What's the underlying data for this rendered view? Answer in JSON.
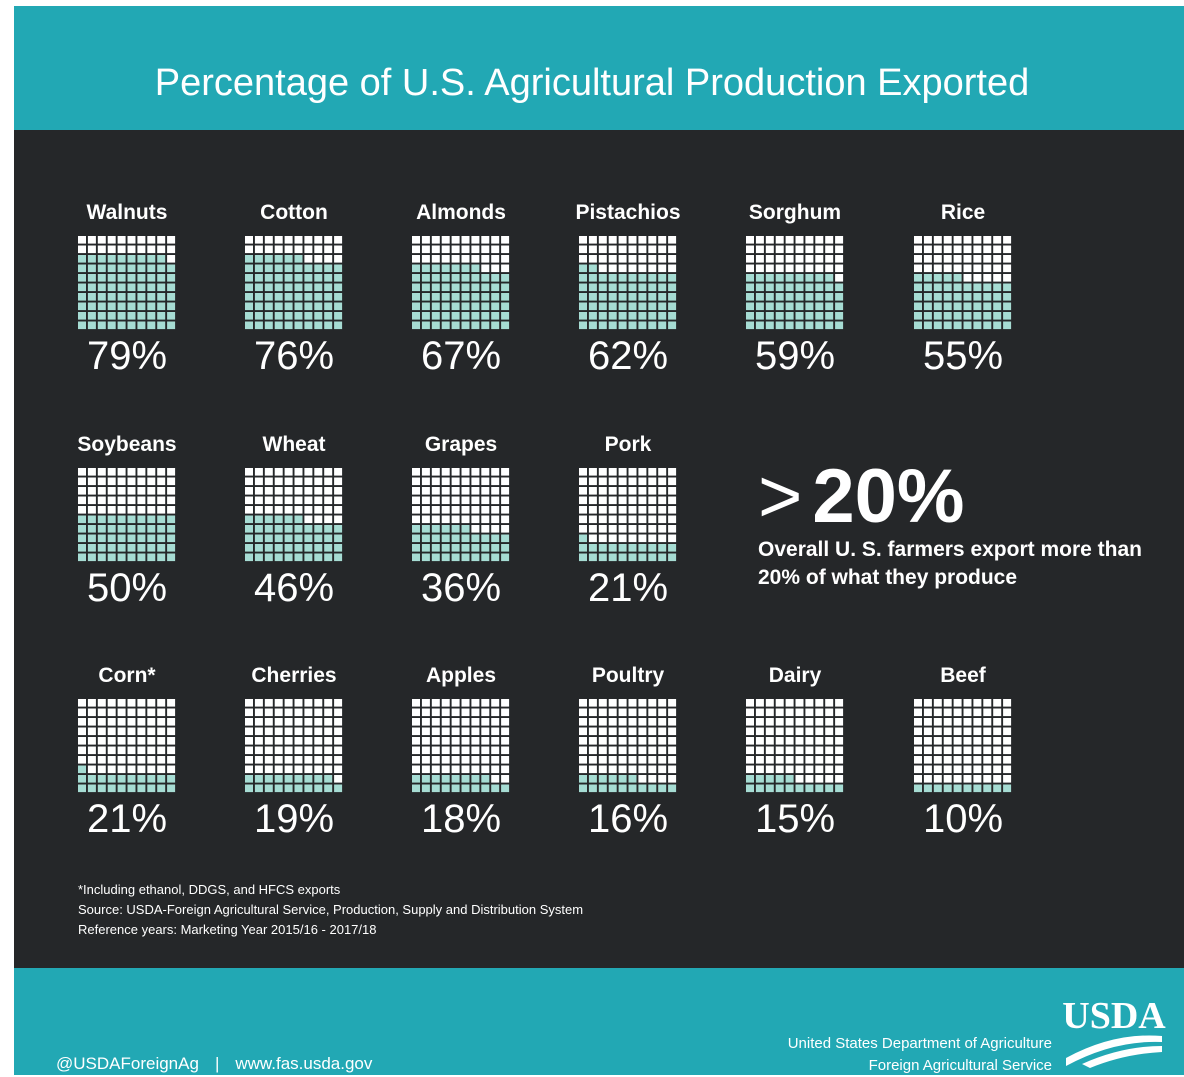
{
  "title": "Percentage of U.S. Agricultural Production Exported",
  "colors": {
    "teal": "#22a8b4",
    "dark": "#252729",
    "fill": "#a6dcd3",
    "empty": "#ffffff"
  },
  "chart_data": {
    "type": "table",
    "unit": "%",
    "items": [
      {
        "label": "Walnuts",
        "value": 79,
        "display": "79%"
      },
      {
        "label": "Cotton",
        "value": 76,
        "display": "76%"
      },
      {
        "label": "Almonds",
        "value": 67,
        "display": "67%"
      },
      {
        "label": "Pistachios",
        "value": 62,
        "display": "62%"
      },
      {
        "label": "Sorghum",
        "value": 59,
        "display": "59%"
      },
      {
        "label": "Rice",
        "value": 55,
        "display": "55%"
      },
      {
        "label": "Soybeans",
        "value": 50,
        "display": "50%"
      },
      {
        "label": "Wheat",
        "value": 46,
        "display": "46%"
      },
      {
        "label": "Grapes",
        "value": 36,
        "display": "36%"
      },
      {
        "label": "Pork",
        "value": 21,
        "display": "21%"
      },
      {
        "label": "Corn*",
        "value": 21,
        "display": "21%"
      },
      {
        "label": "Cherries",
        "value": 19,
        "display": "19%"
      },
      {
        "label": "Apples",
        "value": 18,
        "display": "18%"
      },
      {
        "label": "Poultry",
        "value": 16,
        "display": "16%"
      },
      {
        "label": "Dairy",
        "value": 15,
        "display": "15%"
      },
      {
        "label": "Beef",
        "value": 10,
        "display": "10%"
      }
    ]
  },
  "callout": {
    "symbol": ">",
    "value": "20%",
    "text": "Overall  U. S. farmers export more than 20% of what they produce"
  },
  "notes": [
    "*Including ethanol, DDGS, and HFCS exports",
    "Source:  USDA-Foreign Agricultural Service, Production, Supply and Distribution System",
    "Reference years:  Marketing Year 2015/16 - 2017/18"
  ],
  "footer": {
    "handle": "@USDAForeignAg",
    "separator": "|",
    "website": "www.fas.usda.gov",
    "agency_line1": "United States Department of Agriculture",
    "agency_line2": "Foreign Agricultural Service",
    "logo_text": "USDA"
  }
}
